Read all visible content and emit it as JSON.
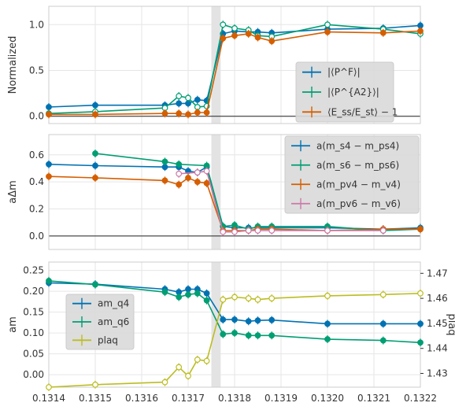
{
  "chart_data": [
    {
      "type": "line",
      "ylabel": "Normalized",
      "xlim": [
        0.1314,
        0.1322
      ],
      "ylim": [
        -0.08,
        1.2
      ],
      "yticks": [
        0.0,
        0.5,
        1.0
      ],
      "ytick_labels": [
        "0.0",
        "0.5",
        "1.0"
      ],
      "grid": true,
      "shaded_band": [
        0.13175,
        0.13177
      ],
      "hline": 0.0,
      "legend_position": "lower right",
      "series": [
        {
          "name": "|⟨P^F⟩|",
          "color": "#0072b2",
          "marker": "filled",
          "points": [
            {
              "x": 0.1314,
              "y": 0.1
            },
            {
              "x": 0.1315,
              "y": 0.12
            },
            {
              "x": 0.13165,
              "y": 0.12
            },
            {
              "x": 0.13168,
              "y": 0.14
            },
            {
              "x": 0.1317,
              "y": 0.14
            },
            {
              "x": 0.13172,
              "y": 0.18
            },
            {
              "x": 0.13174,
              "y": 0.17
            },
            {
              "x": 0.131775,
              "y": 0.9
            },
            {
              "x": 0.1318,
              "y": 0.93
            },
            {
              "x": 0.13183,
              "y": 0.92
            },
            {
              "x": 0.13185,
              "y": 0.92
            },
            {
              "x": 0.13188,
              "y": 0.91
            },
            {
              "x": 0.132,
              "y": 0.95
            },
            {
              "x": 0.13212,
              "y": 0.96
            },
            {
              "x": 0.1322,
              "y": 0.99
            }
          ]
        },
        {
          "name": "|⟨P^{A2}⟩|",
          "color": "#009e73",
          "marker": "open",
          "points": [
            {
              "x": 0.1314,
              "y": 0.03
            },
            {
              "x": 0.1315,
              "y": 0.05
            },
            {
              "x": 0.13165,
              "y": 0.09
            },
            {
              "x": 0.13168,
              "y": 0.22
            },
            {
              "x": 0.1317,
              "y": 0.2
            },
            {
              "x": 0.13172,
              "y": 0.1
            },
            {
              "x": 0.13174,
              "y": 0.11
            },
            {
              "x": 0.131775,
              "y": 1.0
            },
            {
              "x": 0.1318,
              "y": 0.96
            },
            {
              "x": 0.13183,
              "y": 0.94
            },
            {
              "x": 0.13185,
              "y": 0.88
            },
            {
              "x": 0.13188,
              "y": 0.87
            },
            {
              "x": 0.132,
              "y": 1.0
            },
            {
              "x": 0.13212,
              "y": 0.95
            },
            {
              "x": 0.1322,
              "y": 0.9
            }
          ]
        },
        {
          "name": "⟨E_ss/E_st⟩ − 1",
          "color": "#d55e00",
          "marker": "filled",
          "points": [
            {
              "x": 0.1314,
              "y": 0.02
            },
            {
              "x": 0.1315,
              "y": 0.02
            },
            {
              "x": 0.13165,
              "y": 0.03
            },
            {
              "x": 0.13168,
              "y": 0.03
            },
            {
              "x": 0.1317,
              "y": 0.02
            },
            {
              "x": 0.13172,
              "y": 0.04
            },
            {
              "x": 0.13174,
              "y": 0.04
            },
            {
              "x": 0.131775,
              "y": 0.85
            },
            {
              "x": 0.1318,
              "y": 0.88
            },
            {
              "x": 0.13183,
              "y": 0.9
            },
            {
              "x": 0.13185,
              "y": 0.86
            },
            {
              "x": 0.13188,
              "y": 0.82
            },
            {
              "x": 0.132,
              "y": 0.92
            },
            {
              "x": 0.13212,
              "y": 0.91
            },
            {
              "x": 0.1322,
              "y": 0.93
            }
          ]
        }
      ]
    },
    {
      "type": "line",
      "ylabel": "aΔm",
      "xlim": [
        0.1314,
        0.1322
      ],
      "ylim": [
        -0.1,
        0.75
      ],
      "yticks": [
        0.0,
        0.2,
        0.4,
        0.6
      ],
      "ytick_labels": [
        "0.0",
        "0.2",
        "0.4",
        "0.6"
      ],
      "grid": true,
      "shaded_band": [
        0.13175,
        0.13177
      ],
      "hline": 0.0,
      "legend_position": "upper right",
      "series": [
        {
          "name": "a(m_s4 − m_ps4)",
          "color": "#0072b2",
          "marker": "filled",
          "points": [
            {
              "x": 0.1314,
              "y": 0.53
            },
            {
              "x": 0.1315,
              "y": 0.52
            },
            {
              "x": 0.13165,
              "y": 0.51
            },
            {
              "x": 0.13168,
              "y": 0.51
            },
            {
              "x": 0.1317,
              "y": 0.48
            },
            {
              "x": 0.13172,
              "y": 0.47
            },
            {
              "x": 0.13174,
              "y": 0.51
            },
            {
              "x": 0.131775,
              "y": 0.07
            },
            {
              "x": 0.1318,
              "y": 0.06
            },
            {
              "x": 0.13183,
              "y": 0.06
            },
            {
              "x": 0.13185,
              "y": 0.06
            },
            {
              "x": 0.13188,
              "y": 0.06
            },
            {
              "x": 0.132,
              "y": 0.06
            },
            {
              "x": 0.13212,
              "y": 0.05
            },
            {
              "x": 0.1322,
              "y": 0.06
            }
          ]
        },
        {
          "name": "a(m_s6 − m_ps6)",
          "color": "#009e73",
          "marker": "filled",
          "points": [
            {
              "x": 0.1315,
              "y": 0.61
            },
            {
              "x": 0.13165,
              "y": 0.55
            },
            {
              "x": 0.13168,
              "y": 0.53
            },
            {
              "x": 0.13174,
              "y": 0.52
            },
            {
              "x": 0.131775,
              "y": 0.07
            },
            {
              "x": 0.1318,
              "y": 0.08
            },
            {
              "x": 0.13183,
              "y": 0.05
            },
            {
              "x": 0.13185,
              "y": 0.07
            },
            {
              "x": 0.13188,
              "y": 0.07
            },
            {
              "x": 0.132,
              "y": 0.07
            },
            {
              "x": 0.13212,
              "y": 0.04
            },
            {
              "x": 0.1322,
              "y": 0.05
            }
          ]
        },
        {
          "name": "a(m_pv4 − m_v4)",
          "color": "#d55e00",
          "marker": "filled",
          "points": [
            {
              "x": 0.1314,
              "y": 0.44
            },
            {
              "x": 0.1315,
              "y": 0.43
            },
            {
              "x": 0.13165,
              "y": 0.41
            },
            {
              "x": 0.13168,
              "y": 0.38
            },
            {
              "x": 0.1317,
              "y": 0.43
            },
            {
              "x": 0.13172,
              "y": 0.4
            },
            {
              "x": 0.13174,
              "y": 0.39
            },
            {
              "x": 0.131775,
              "y": 0.04
            },
            {
              "x": 0.1318,
              "y": 0.04
            },
            {
              "x": 0.13183,
              "y": 0.04
            },
            {
              "x": 0.13185,
              "y": 0.05
            },
            {
              "x": 0.13188,
              "y": 0.05
            },
            {
              "x": 0.132,
              "y": 0.04
            },
            {
              "x": 0.13212,
              "y": 0.05
            },
            {
              "x": 0.1322,
              "y": 0.05
            }
          ]
        },
        {
          "name": "a(m_pv6 − m_v6)",
          "color": "#cc79a7",
          "marker": "open",
          "points": [
            {
              "x": 0.13168,
              "y": 0.46
            },
            {
              "x": 0.13172,
              "y": 0.47
            },
            {
              "x": 0.13174,
              "y": 0.48
            },
            {
              "x": 0.131775,
              "y": 0.03
            },
            {
              "x": 0.1318,
              "y": 0.03
            },
            {
              "x": 0.13183,
              "y": 0.04
            },
            {
              "x": 0.13185,
              "y": 0.04
            },
            {
              "x": 0.13188,
              "y": 0.04
            },
            {
              "x": 0.132,
              "y": 0.04
            },
            {
              "x": 0.13212,
              "y": 0.04
            }
          ]
        }
      ]
    },
    {
      "type": "line",
      "ylabel": "am",
      "ylabel_right": "plaq",
      "xlim": [
        0.1314,
        0.1322
      ],
      "ylim": [
        -0.03,
        0.27
      ],
      "ylim_right": [
        1.4245,
        1.4745
      ],
      "yticks": [
        0.0,
        0.05,
        0.1,
        0.15,
        0.2,
        0.25
      ],
      "ytick_labels": [
        "0.00",
        "0.05",
        "0.10",
        "0.15",
        "0.20",
        "0.25"
      ],
      "yticks_right": [
        1.43,
        1.44,
        1.45,
        1.46,
        1.47
      ],
      "ytick_labels_right": [
        "1.43",
        "1.44",
        "1.45",
        "1.46",
        "1.47"
      ],
      "xticks": [
        0.1314,
        0.1315,
        0.1316,
        0.1317,
        0.1318,
        0.1319,
        0.132,
        0.1321,
        0.1322
      ],
      "xtick_labels": [
        "0.1314",
        "0.1315",
        "0.1316",
        "0.1317",
        "0.1318",
        "0.1319",
        "0.1320",
        "0.1321",
        "0.1322"
      ],
      "grid": true,
      "shaded_band": [
        0.13175,
        0.13177
      ],
      "legend_position": "center left",
      "series": [
        {
          "name": "am_q4",
          "color": "#0072b2",
          "marker": "filled",
          "axis": "left",
          "points": [
            {
              "x": 0.1314,
              "y": 0.22
            },
            {
              "x": 0.1315,
              "y": 0.217
            },
            {
              "x": 0.13165,
              "y": 0.205
            },
            {
              "x": 0.13168,
              "y": 0.198
            },
            {
              "x": 0.1317,
              "y": 0.205
            },
            {
              "x": 0.13172,
              "y": 0.205
            },
            {
              "x": 0.13174,
              "y": 0.195
            },
            {
              "x": 0.131775,
              "y": 0.132
            },
            {
              "x": 0.1318,
              "y": 0.132
            },
            {
              "x": 0.13183,
              "y": 0.128
            },
            {
              "x": 0.13185,
              "y": 0.13
            },
            {
              "x": 0.13188,
              "y": 0.131
            },
            {
              "x": 0.132,
              "y": 0.122
            },
            {
              "x": 0.13212,
              "y": 0.122
            },
            {
              "x": 0.1322,
              "y": 0.122
            }
          ]
        },
        {
          "name": "am_q6",
          "color": "#009e73",
          "marker": "filled",
          "axis": "left",
          "points": [
            {
              "x": 0.1314,
              "y": 0.225
            },
            {
              "x": 0.1315,
              "y": 0.216
            },
            {
              "x": 0.13165,
              "y": 0.198
            },
            {
              "x": 0.13168,
              "y": 0.186
            },
            {
              "x": 0.1317,
              "y": 0.192
            },
            {
              "x": 0.13172,
              "y": 0.195
            },
            {
              "x": 0.13174,
              "y": 0.178
            },
            {
              "x": 0.131775,
              "y": 0.097
            },
            {
              "x": 0.1318,
              "y": 0.1
            },
            {
              "x": 0.13183,
              "y": 0.094
            },
            {
              "x": 0.13185,
              "y": 0.094
            },
            {
              "x": 0.13188,
              "y": 0.094
            },
            {
              "x": 0.132,
              "y": 0.085
            },
            {
              "x": 0.13212,
              "y": 0.082
            },
            {
              "x": 0.1322,
              "y": 0.077
            }
          ]
        },
        {
          "name": "plaq",
          "color": "#bcbd22",
          "marker": "open",
          "axis": "right",
          "points": [
            {
              "x": 0.1314,
              "y": 1.4245
            },
            {
              "x": 0.1315,
              "y": 1.4255
            },
            {
              "x": 0.13165,
              "y": 1.4265
            },
            {
              "x": 0.13168,
              "y": 1.4325
            },
            {
              "x": 0.1317,
              "y": 1.429
            },
            {
              "x": 0.13172,
              "y": 1.4355
            },
            {
              "x": 0.13174,
              "y": 1.435
            },
            {
              "x": 0.131775,
              "y": 1.4595
            },
            {
              "x": 0.1318,
              "y": 1.4605
            },
            {
              "x": 0.13183,
              "y": 1.46
            },
            {
              "x": 0.13185,
              "y": 1.4595
            },
            {
              "x": 0.13188,
              "y": 1.46
            },
            {
              "x": 0.132,
              "y": 1.461
            },
            {
              "x": 0.13212,
              "y": 1.4615
            },
            {
              "x": 0.1322,
              "y": 1.462
            }
          ]
        }
      ]
    }
  ]
}
